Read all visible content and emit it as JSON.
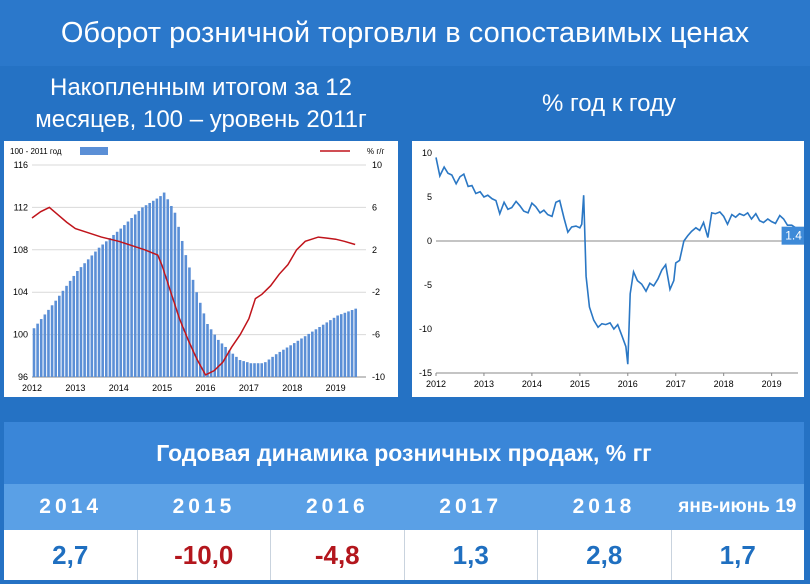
{
  "title": "Оборот розничной торговли в сопоставимых ценах",
  "subtitle_left": "Накопленным итогом за 12 месяцев, 100 – уровень 2011г",
  "subtitle_right": "% год к году",
  "table": {
    "title": "Годовая динамика розничных продаж, % гг",
    "years": [
      "2014",
      "2015",
      "2016",
      "2017",
      "2018",
      "янв-июнь 19"
    ],
    "values": [
      "2,7",
      "-10,0",
      "-4,8",
      "1,3",
      "2,8",
      "1,7"
    ],
    "value_colors": [
      "#1f6fc0",
      "#b3161d",
      "#b3161d",
      "#1f6fc0",
      "#1f6fc0",
      "#1f6fc0"
    ]
  },
  "chart_data": [
    {
      "type": "bar",
      "legend": [
        {
          "name": "100 - 2011 год",
          "color": "#5b8fd6"
        },
        {
          "name": "% г/г",
          "color": "#c0141b"
        }
      ],
      "x_ticks": [
        "2012",
        "2013",
        "2014",
        "2015",
        "2016",
        "2017",
        "2018",
        "2019"
      ],
      "ylim_left": [
        96,
        116
      ],
      "yticks_left": [
        96,
        100,
        104,
        108,
        112,
        116
      ],
      "ylim_right": [
        -10,
        10
      ],
      "yticks_right": [
        -10,
        -6,
        -2,
        2,
        6,
        10
      ],
      "bar_series": {
        "name": "100 - 2011 год",
        "anchors": [
          [
            2012.0,
            100.6
          ],
          [
            2012.5,
            103.2
          ],
          [
            2013.0,
            106.0
          ],
          [
            2013.5,
            108.2
          ],
          [
            2014.0,
            110.0
          ],
          [
            2014.5,
            112.0
          ],
          [
            2014.9,
            113.0
          ],
          [
            2015.0,
            113.4
          ],
          [
            2015.25,
            111.5
          ],
          [
            2015.5,
            107.5
          ],
          [
            2015.75,
            104.0
          ],
          [
            2016.0,
            101.0
          ],
          [
            2016.25,
            99.5
          ],
          [
            2016.5,
            98.5
          ],
          [
            2016.75,
            97.6
          ],
          [
            2017.0,
            97.3
          ],
          [
            2017.3,
            97.3
          ],
          [
            2017.6,
            98.2
          ],
          [
            2018.0,
            99.2
          ],
          [
            2018.5,
            100.5
          ],
          [
            2019.0,
            101.8
          ],
          [
            2019.45,
            102.5
          ]
        ]
      },
      "line_series": {
        "name": "% г/г",
        "axis": "right",
        "points": [
          [
            2012.0,
            5.0
          ],
          [
            2012.2,
            5.6
          ],
          [
            2012.4,
            6.0
          ],
          [
            2012.6,
            5.3
          ],
          [
            2012.8,
            4.6
          ],
          [
            2013.0,
            4.0
          ],
          [
            2013.3,
            3.6
          ],
          [
            2013.6,
            3.2
          ],
          [
            2014.0,
            2.8
          ],
          [
            2014.3,
            2.4
          ],
          [
            2014.6,
            2.0
          ],
          [
            2014.9,
            1.5
          ],
          [
            2015.0,
            0.5
          ],
          [
            2015.2,
            -2.0
          ],
          [
            2015.4,
            -4.5
          ],
          [
            2015.6,
            -6.5
          ],
          [
            2015.8,
            -8.3
          ],
          [
            2016.0,
            -9.8
          ],
          [
            2016.2,
            -9.4
          ],
          [
            2016.4,
            -8.6
          ],
          [
            2016.6,
            -7.2
          ],
          [
            2016.8,
            -6.0
          ],
          [
            2017.0,
            -4.5
          ],
          [
            2017.15,
            -2.6
          ],
          [
            2017.3,
            -2.2
          ],
          [
            2017.5,
            -1.4
          ],
          [
            2017.7,
            -0.3
          ],
          [
            2017.9,
            0.6
          ],
          [
            2018.1,
            2.0
          ],
          [
            2018.3,
            2.8
          ],
          [
            2018.6,
            3.2
          ],
          [
            2018.8,
            3.1
          ],
          [
            2019.0,
            3.0
          ],
          [
            2019.2,
            2.8
          ],
          [
            2019.45,
            2.5
          ]
        ]
      }
    },
    {
      "type": "line",
      "x_ticks": [
        "2012",
        "2013",
        "2014",
        "2015",
        "2016",
        "2017",
        "2018",
        "2019"
      ],
      "ylim": [
        -15,
        10
      ],
      "yticks": [
        10,
        5,
        0,
        -5,
        -10,
        -15
      ],
      "end_label": "1.4",
      "series": [
        {
          "color": "#2a77c4",
          "points": [
            [
              2012.0,
              9.5
            ],
            [
              2012.08,
              7.4
            ],
            [
              2012.17,
              8.4
            ],
            [
              2012.25,
              7.7
            ],
            [
              2012.33,
              7.5
            ],
            [
              2012.42,
              6.5
            ],
            [
              2012.5,
              7.3
            ],
            [
              2012.58,
              7.6
            ],
            [
              2012.67,
              6.2
            ],
            [
              2012.75,
              6.3
            ],
            [
              2012.83,
              5.4
            ],
            [
              2012.92,
              5.6
            ],
            [
              2013.0,
              5.0
            ],
            [
              2013.08,
              5.2
            ],
            [
              2013.17,
              4.8
            ],
            [
              2013.25,
              4.6
            ],
            [
              2013.33,
              3.1
            ],
            [
              2013.42,
              4.4
            ],
            [
              2013.5,
              3.6
            ],
            [
              2013.58,
              3.8
            ],
            [
              2013.67,
              4.5
            ],
            [
              2013.75,
              4.0
            ],
            [
              2013.83,
              3.4
            ],
            [
              2013.92,
              3.2
            ],
            [
              2014.0,
              4.3
            ],
            [
              2014.08,
              3.9
            ],
            [
              2014.17,
              3.2
            ],
            [
              2014.25,
              3.5
            ],
            [
              2014.33,
              3.0
            ],
            [
              2014.42,
              2.8
            ],
            [
              2014.5,
              4.4
            ],
            [
              2014.58,
              4.6
            ],
            [
              2014.67,
              2.6
            ],
            [
              2014.75,
              1.0
            ],
            [
              2014.83,
              1.6
            ],
            [
              2014.92,
              1.7
            ],
            [
              2015.0,
              1.5
            ],
            [
              2015.04,
              1.9
            ],
            [
              2015.08,
              5.2
            ],
            [
              2015.13,
              -4.0
            ],
            [
              2015.2,
              -7.5
            ],
            [
              2015.29,
              -9.0
            ],
            [
              2015.38,
              -9.8
            ],
            [
              2015.46,
              -9.4
            ],
            [
              2015.54,
              -9.5
            ],
            [
              2015.63,
              -9.3
            ],
            [
              2015.71,
              -10.0
            ],
            [
              2015.79,
              -9.5
            ],
            [
              2015.88,
              -10.8
            ],
            [
              2015.96,
              -12.0
            ],
            [
              2016.0,
              -14.0
            ],
            [
              2016.05,
              -6.0
            ],
            [
              2016.12,
              -3.5
            ],
            [
              2016.2,
              -4.5
            ],
            [
              2016.29,
              -4.9
            ],
            [
              2016.38,
              -5.7
            ],
            [
              2016.46,
              -4.8
            ],
            [
              2016.54,
              -5.1
            ],
            [
              2016.63,
              -4.3
            ],
            [
              2016.71,
              -3.3
            ],
            [
              2016.79,
              -2.7
            ],
            [
              2016.88,
              -5.5
            ],
            [
              2016.96,
              -4.5
            ],
            [
              2017.0,
              -2.5
            ],
            [
              2017.08,
              -2.2
            ],
            [
              2017.17,
              0.0
            ],
            [
              2017.25,
              0.6
            ],
            [
              2017.33,
              1.1
            ],
            [
              2017.42,
              1.5
            ],
            [
              2017.5,
              1.2
            ],
            [
              2017.58,
              2.1
            ],
            [
              2017.67,
              0.4
            ],
            [
              2017.75,
              3.2
            ],
            [
              2017.83,
              3.1
            ],
            [
              2017.92,
              3.3
            ],
            [
              2018.0,
              2.8
            ],
            [
              2018.08,
              1.9
            ],
            [
              2018.17,
              3.0
            ],
            [
              2018.25,
              2.7
            ],
            [
              2018.33,
              3.1
            ],
            [
              2018.42,
              2.9
            ],
            [
              2018.5,
              3.2
            ],
            [
              2018.58,
              2.5
            ],
            [
              2018.67,
              3.1
            ],
            [
              2018.75,
              2.3
            ],
            [
              2018.83,
              2.1
            ],
            [
              2018.92,
              2.5
            ],
            [
              2019.0,
              2.2
            ],
            [
              2019.08,
              2.0
            ],
            [
              2019.17,
              2.9
            ],
            [
              2019.25,
              2.5
            ],
            [
              2019.33,
              1.8
            ],
            [
              2019.42,
              1.8
            ],
            [
              2019.5,
              1.5
            ],
            [
              2019.58,
              1.4
            ],
            [
              2019.67,
              1.3
            ],
            [
              2019.75,
              1.4
            ]
          ]
        }
      ]
    }
  ]
}
